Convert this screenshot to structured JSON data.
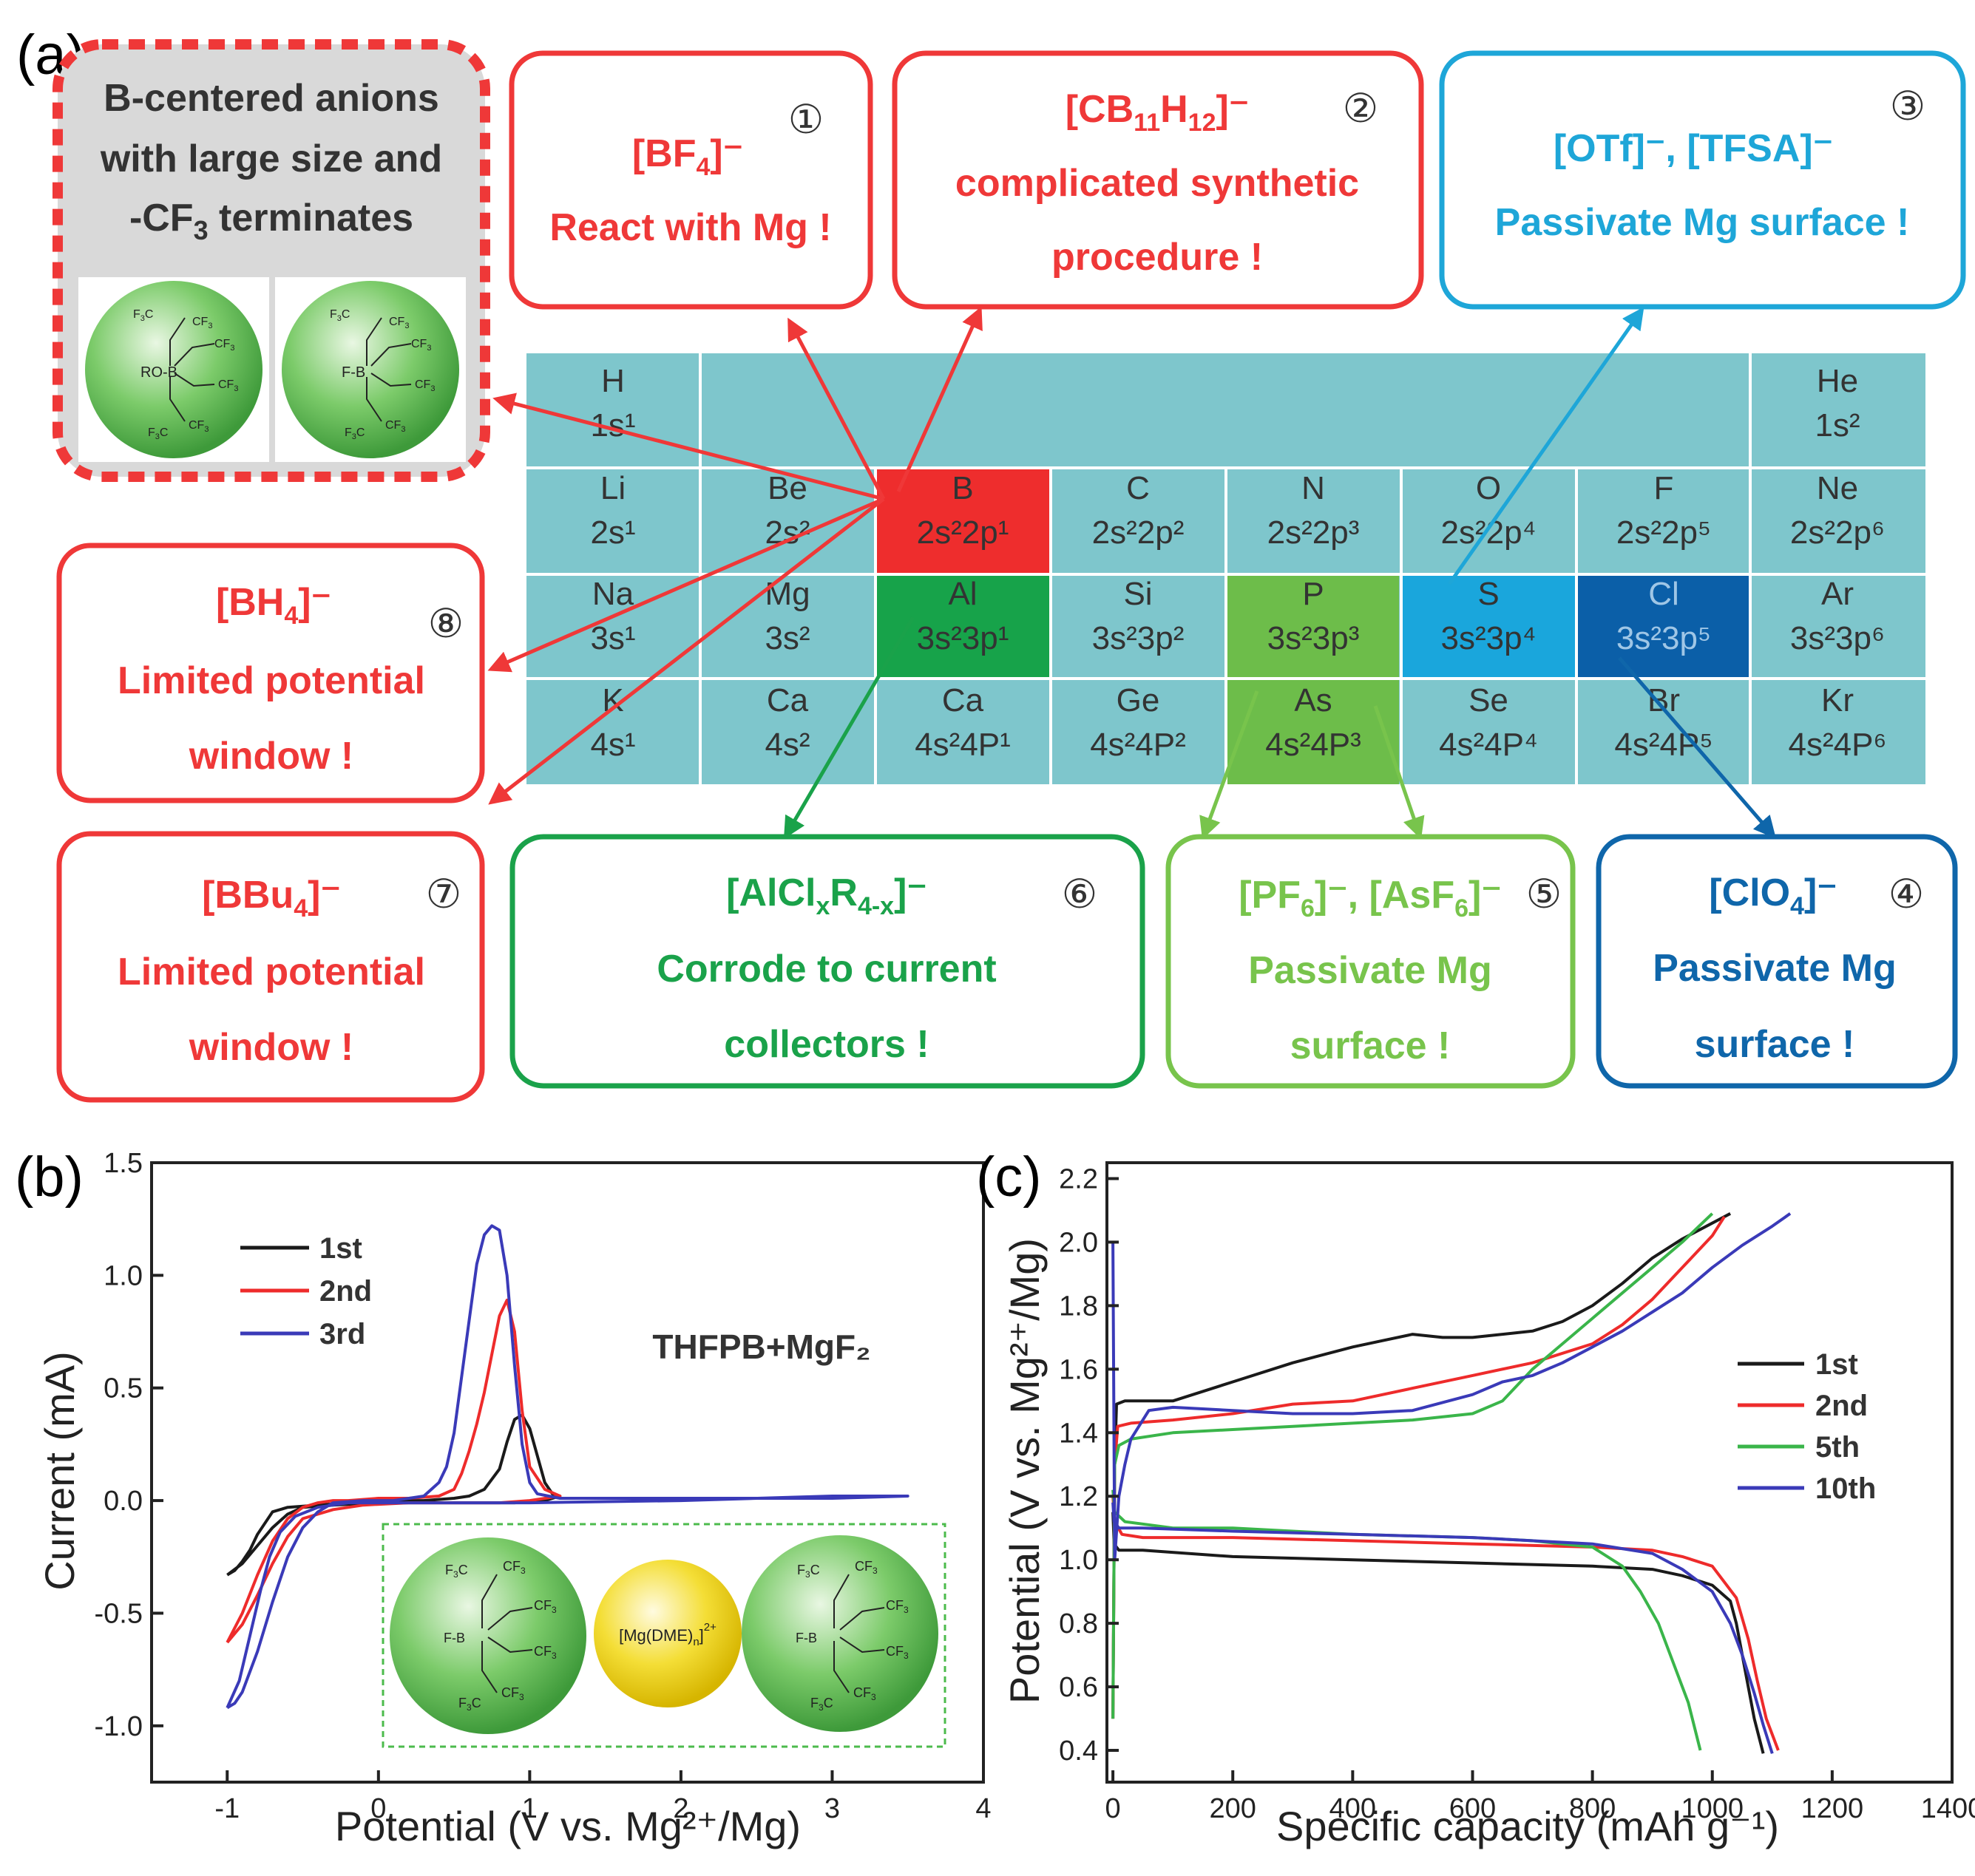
{
  "panel_labels": {
    "a": "(a)",
    "b": "(b)",
    "c": "(c)"
  },
  "colors": {
    "red": "#ef3838",
    "green": "#1aa24a",
    "lightgreen": "#78c44c",
    "cyan": "#1ea6d8",
    "darkblue": "#0f66aa",
    "table_bg": "#7ec6cc",
    "b_cell": "#ee2d2d",
    "al_cell": "#17a34a",
    "p_cell": "#6dbd4a",
    "s_cell": "#1aa6dc",
    "cl_cell": "#0b5fa8"
  },
  "anion_box": {
    "line1": "B-centered anions",
    "line2": "with large size and",
    "line3_pre": "-CF",
    "line3_sub": "3",
    "line3_post": " terminates",
    "mol1_label": "RO-B",
    "mol2_label": "F-B",
    "cf3": "CF",
    "f3c": "F",
    "f3c_post": "C"
  },
  "callouts": {
    "c1": {
      "num": "①",
      "formula": "[BF",
      "sub": "4",
      "post": "]⁻",
      "l1": "React with Mg !"
    },
    "c2": {
      "num": "②",
      "formula": "[CB",
      "sub1": "11",
      "mid": "H",
      "sub2": "12",
      "post": "]⁻",
      "l1": "complicated synthetic",
      "l2": "procedure !"
    },
    "c3": {
      "num": "③",
      "formula": "[OTf]⁻, [TFSA]⁻",
      "l1": "Passivate Mg surface !"
    },
    "c4": {
      "num": "④",
      "formula": "[ClO",
      "sub": "4",
      "post": "]⁻",
      "l1": "Passivate Mg",
      "l2": "surface !"
    },
    "c5": {
      "num": "⑤",
      "formula": "[PF",
      "sub": "6",
      "mid": "]⁻, [AsF",
      "sub2": "6",
      "post": "]⁻",
      "l1": "Passivate Mg",
      "l2": "surface !"
    },
    "c6": {
      "num": "⑥",
      "formula": "[AlCl",
      "sub1": "x",
      "mid": "R",
      "sub2": "4-x",
      "post": "]⁻",
      "l1": "Corrode to current",
      "l2": "collectors !"
    },
    "c7": {
      "num": "⑦",
      "formula": "[BBu",
      "sub": "4",
      "post": "]⁻",
      "l1": "Limited potential",
      "l2": "window !"
    },
    "c8": {
      "num": "⑧",
      "formula": "[BH",
      "sub": "4",
      "post": "]⁻",
      "l1": "Limited potential",
      "l2": "window !"
    }
  },
  "periodic_table": {
    "H": {
      "sym": "H",
      "cfg": "1s¹"
    },
    "He": {
      "sym": "He",
      "cfg": "1s²"
    },
    "row2": [
      {
        "sym": "Li",
        "cfg": "2s¹"
      },
      {
        "sym": "Be",
        "cfg": "2s²"
      },
      {
        "sym": "B",
        "cfg": "2s²2p¹"
      },
      {
        "sym": "C",
        "cfg": "2s²2p²"
      },
      {
        "sym": "N",
        "cfg": "2s²2p³"
      },
      {
        "sym": "O",
        "cfg": "2s²2p⁴"
      },
      {
        "sym": "F",
        "cfg": "2s²2p⁵"
      },
      {
        "sym": "Ne",
        "cfg": "2s²2p⁶"
      }
    ],
    "row3": [
      {
        "sym": "Na",
        "cfg": "3s¹"
      },
      {
        "sym": "Mg",
        "cfg": "3s²"
      },
      {
        "sym": "Al",
        "cfg": "3s²3p¹"
      },
      {
        "sym": "Si",
        "cfg": "3s²3p²"
      },
      {
        "sym": "P",
        "cfg": "3s²3p³"
      },
      {
        "sym": "S",
        "cfg": "3s²3p⁴"
      },
      {
        "sym": "Cl",
        "cfg": "3s²3p⁵"
      },
      {
        "sym": "Ar",
        "cfg": "3s²3p⁶"
      }
    ],
    "row4": [
      {
        "sym": "K",
        "cfg": "4s¹"
      },
      {
        "sym": "Ca",
        "cfg": "4s²"
      },
      {
        "sym": "Ca",
        "cfg": "4s²4P¹"
      },
      {
        "sym": "Ge",
        "cfg": "4s²4P²"
      },
      {
        "sym": "As",
        "cfg": "4s²4P³"
      },
      {
        "sym": "Se",
        "cfg": "4s²4P⁴"
      },
      {
        "sym": "Br",
        "cfg": "4s²4P⁵"
      },
      {
        "sym": "Kr",
        "cfg": "4s²4P⁶"
      }
    ]
  },
  "inset_b": {
    "center_label": "Mg(DME)",
    "center_sub": "n",
    "charge": "2+"
  },
  "chart_data": [
    {
      "type": "line",
      "xlabel": "Potential (V vs. Mg²⁺/Mg)",
      "ylabel": "Current (mA)",
      "xlim": [
        -1.5,
        4
      ],
      "ylim": [
        -1.25,
        1.5
      ],
      "xticks": [
        -1,
        0,
        1,
        2,
        3,
        4
      ],
      "xtick_labels": [
        "-1",
        "0",
        "1",
        "2",
        "3",
        "4"
      ],
      "yticks": [
        -1.0,
        -0.5,
        0.0,
        0.5,
        1.0,
        1.5
      ],
      "ytick_labels": [
        "-1.0",
        "-0.5",
        "0.0",
        "0.5",
        "1.0",
        "1.5"
      ],
      "annotation": "THFPB+MgF₂",
      "legend": "top-left",
      "series": [
        {
          "name": "1st",
          "color": "#1a1a1a",
          "x": [
            -1.0,
            -0.95,
            -0.9,
            -0.85,
            -0.8,
            -0.7,
            -0.6,
            -0.4,
            -0.2,
            0.0,
            0.3,
            0.5,
            0.6,
            0.7,
            0.8,
            0.85,
            0.9,
            0.95,
            1.0,
            1.05,
            1.1,
            1.15,
            1.2,
            1.1,
            0.9,
            0.7,
            0.5,
            0.3,
            0.0,
            -0.3,
            -0.5,
            -0.6,
            -0.7,
            -0.8,
            -0.9,
            -1.0
          ],
          "y": [
            -0.33,
            -0.31,
            -0.27,
            -0.22,
            -0.15,
            -0.05,
            -0.03,
            -0.02,
            -0.01,
            0.0,
            0.0,
            0.01,
            0.02,
            0.05,
            0.14,
            0.26,
            0.36,
            0.38,
            0.32,
            0.2,
            0.08,
            0.03,
            0.02,
            0.0,
            -0.01,
            -0.01,
            -0.01,
            -0.01,
            -0.01,
            -0.02,
            -0.03,
            -0.06,
            -0.12,
            -0.2,
            -0.28,
            -0.33
          ]
        },
        {
          "name": "2nd",
          "color": "#ee2b2b",
          "x": [
            -1.0,
            -0.9,
            -0.8,
            -0.7,
            -0.6,
            -0.5,
            -0.4,
            -0.3,
            -0.2,
            0.0,
            0.2,
            0.4,
            0.5,
            0.55,
            0.6,
            0.65,
            0.7,
            0.75,
            0.8,
            0.85,
            0.9,
            0.95,
            1.0,
            1.1,
            1.2,
            1.0,
            0.8,
            0.5,
            0.2,
            -0.1,
            -0.3,
            -0.5,
            -0.6,
            -0.7,
            -0.8,
            -0.9,
            -1.0
          ],
          "y": [
            -0.63,
            -0.5,
            -0.33,
            -0.18,
            -0.08,
            -0.03,
            -0.01,
            0.0,
            0.0,
            0.01,
            0.01,
            0.02,
            0.05,
            0.12,
            0.22,
            0.34,
            0.48,
            0.65,
            0.82,
            0.89,
            0.75,
            0.4,
            0.15,
            0.05,
            0.02,
            0.0,
            -0.01,
            -0.01,
            -0.01,
            -0.02,
            -0.04,
            -0.08,
            -0.16,
            -0.28,
            -0.42,
            -0.55,
            -0.63
          ]
        },
        {
          "name": "3rd",
          "color": "#3a3ab8",
          "x": [
            -1.0,
            -0.95,
            -0.9,
            -0.8,
            -0.7,
            -0.6,
            -0.5,
            -0.4,
            -0.3,
            -0.1,
            0.1,
            0.3,
            0.35,
            0.4,
            0.45,
            0.5,
            0.55,
            0.6,
            0.65,
            0.7,
            0.75,
            0.8,
            0.85,
            0.9,
            0.95,
            1.0,
            1.05,
            1.2,
            1.5,
            2.0,
            2.5,
            3.0,
            3.5,
            3.0,
            2.0,
            1.0,
            0.5,
            0.2,
            0.0,
            -0.2,
            -0.4,
            -0.55,
            -0.65,
            -0.72,
            -0.78,
            -0.85,
            -0.92,
            -1.0
          ],
          "y": [
            -0.92,
            -0.9,
            -0.85,
            -0.67,
            -0.45,
            -0.25,
            -0.12,
            -0.05,
            -0.01,
            0.0,
            0.0,
            0.02,
            0.05,
            0.08,
            0.15,
            0.3,
            0.55,
            0.8,
            1.05,
            1.18,
            1.22,
            1.2,
            1.0,
            0.6,
            0.25,
            0.08,
            0.03,
            0.01,
            0.01,
            0.01,
            0.01,
            0.01,
            0.02,
            0.02,
            0.0,
            -0.01,
            -0.01,
            -0.01,
            -0.01,
            -0.01,
            -0.03,
            -0.07,
            -0.14,
            -0.25,
            -0.4,
            -0.6,
            -0.8,
            -0.92
          ]
        }
      ]
    },
    {
      "type": "line",
      "xlabel": "Specific capacity (mAh g⁻¹)",
      "ylabel": "Potential (V vs. Mg²⁺/Mg)",
      "xlim": [
        -10,
        1400
      ],
      "ylim": [
        0.3,
        2.25
      ],
      "xticks": [
        0,
        200,
        400,
        600,
        800,
        1000,
        1200,
        1400
      ],
      "xtick_labels": [
        "0",
        "200",
        "400",
        "600",
        "800",
        "1000",
        "1200",
        "1400"
      ],
      "yticks": [
        0.4,
        0.6,
        0.8,
        1.0,
        1.2,
        1.4,
        1.6,
        1.8,
        2.0,
        2.2
      ],
      "ytick_labels": [
        "0.4",
        "0.6",
        "0.8",
        "1.0",
        "1.2",
        "1.4",
        "1.6",
        "1.8",
        "2.0",
        "2.2"
      ],
      "legend": "right",
      "series": [
        {
          "name": "1st",
          "color": "#1a1a1a",
          "charge_x": [
            0,
            3,
            6,
            20,
            100,
            200,
            300,
            400,
            450,
            500,
            550,
            600,
            700,
            750,
            800,
            850,
            900,
            950,
            1000,
            1030
          ],
          "charge_y": [
            0.5,
            1.3,
            1.49,
            1.5,
            1.5,
            1.56,
            1.62,
            1.67,
            1.69,
            1.71,
            1.7,
            1.7,
            1.72,
            1.75,
            1.8,
            1.87,
            1.95,
            2.01,
            2.06,
            2.09
          ],
          "discharge_x": [
            0,
            2,
            10,
            50,
            200,
            400,
            600,
            800,
            900,
            950,
            1000,
            1030,
            1040,
            1055,
            1070,
            1085
          ],
          "discharge_y": [
            1.15,
            1.05,
            1.03,
            1.03,
            1.01,
            1.0,
            0.99,
            0.98,
            0.97,
            0.95,
            0.92,
            0.87,
            0.8,
            0.65,
            0.5,
            0.39
          ]
        },
        {
          "name": "2nd",
          "color": "#ee2b2b",
          "charge_x": [
            0,
            3,
            8,
            30,
            100,
            200,
            300,
            400,
            500,
            600,
            700,
            800,
            850,
            900,
            950,
            1000,
            1020
          ],
          "charge_y": [
            0.5,
            1.3,
            1.42,
            1.43,
            1.44,
            1.46,
            1.49,
            1.5,
            1.54,
            1.58,
            1.62,
            1.68,
            1.74,
            1.82,
            1.92,
            2.02,
            2.08
          ],
          "discharge_x": [
            0,
            3,
            15,
            50,
            200,
            400,
            600,
            800,
            900,
            950,
            1000,
            1040,
            1060,
            1075,
            1090,
            1100,
            1110
          ],
          "discharge_y": [
            1.2,
            1.12,
            1.08,
            1.07,
            1.07,
            1.06,
            1.05,
            1.04,
            1.03,
            1.01,
            0.98,
            0.88,
            0.75,
            0.62,
            0.5,
            0.45,
            0.4
          ]
        },
        {
          "name": "5th",
          "color": "#3ab54a",
          "charge_x": [
            0,
            3,
            10,
            30,
            100,
            200,
            300,
            400,
            500,
            600,
            650,
            700,
            750,
            800,
            850,
            900,
            950,
            1000
          ],
          "charge_y": [
            0.5,
            1.3,
            1.36,
            1.38,
            1.4,
            1.41,
            1.42,
            1.43,
            1.44,
            1.46,
            1.5,
            1.6,
            1.68,
            1.76,
            1.84,
            1.92,
            2.0,
            2.09
          ],
          "discharge_x": [
            0,
            3,
            20,
            100,
            200,
            400,
            600,
            700,
            750,
            800,
            850,
            880,
            910,
            940,
            960,
            980
          ],
          "discharge_y": [
            1.22,
            1.15,
            1.12,
            1.1,
            1.1,
            1.08,
            1.07,
            1.06,
            1.05,
            1.04,
            0.98,
            0.9,
            0.8,
            0.65,
            0.55,
            0.4
          ]
        },
        {
          "name": "10th",
          "color": "#3a3ab8",
          "charge_x": [
            0,
            3,
            10,
            20,
            30,
            60,
            100,
            200,
            300,
            400,
            500,
            600,
            650,
            700,
            750,
            800,
            850,
            900,
            950,
            1000,
            1050,
            1100,
            1130
          ],
          "charge_y": [
            2.0,
            1.0,
            1.2,
            1.3,
            1.38,
            1.47,
            1.48,
            1.47,
            1.46,
            1.46,
            1.47,
            1.52,
            1.56,
            1.58,
            1.62,
            1.67,
            1.72,
            1.78,
            1.84,
            1.92,
            1.99,
            2.05,
            2.09
          ],
          "discharge_x": [
            0,
            2,
            10,
            50,
            200,
            400,
            600,
            800,
            900,
            950,
            1000,
            1030,
            1050,
            1070,
            1085,
            1100
          ],
          "discharge_y": [
            1.18,
            1.12,
            1.1,
            1.1,
            1.09,
            1.08,
            1.07,
            1.05,
            1.02,
            0.97,
            0.9,
            0.8,
            0.7,
            0.58,
            0.48,
            0.39
          ]
        }
      ]
    }
  ]
}
